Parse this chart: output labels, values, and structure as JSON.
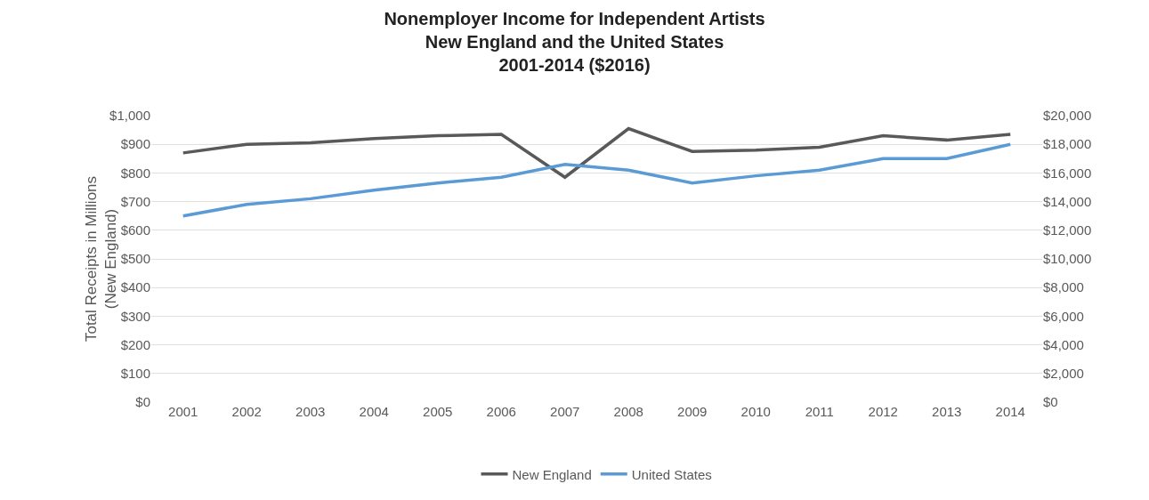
{
  "chart_data": {
    "type": "line",
    "title": "Nonemployer Income for Independent Artists\nNew England and the United States\n2001-2014 ($2016)",
    "ylabel": "Total Receipts in Millions\n(New England)",
    "categories": [
      "2001",
      "2002",
      "2003",
      "2004",
      "2005",
      "2006",
      "2007",
      "2008",
      "2009",
      "2010",
      "2011",
      "2012",
      "2013",
      "2014"
    ],
    "series": [
      {
        "name": "New England",
        "color": "#595959",
        "values": [
          870,
          900,
          905,
          920,
          930,
          935,
          785,
          955,
          875,
          880,
          890,
          930,
          915,
          935
        ]
      },
      {
        "name": "United States",
        "color": "#5b9bd5",
        "axis": "y2",
        "values": [
          13000,
          13800,
          14200,
          14800,
          15300,
          15700,
          16600,
          16200,
          15300,
          15800,
          16200,
          17000,
          17000,
          18000
        ]
      }
    ],
    "ylim": [
      0,
      1000
    ],
    "yticks": [
      {
        "value": 0,
        "label": "$0"
      },
      {
        "value": 100,
        "label": "$100"
      },
      {
        "value": 200,
        "label": "$200"
      },
      {
        "value": 300,
        "label": "$300"
      },
      {
        "value": 400,
        "label": "$400"
      },
      {
        "value": 500,
        "label": "$500"
      },
      {
        "value": 600,
        "label": "$600"
      },
      {
        "value": 700,
        "label": "$700"
      },
      {
        "value": 800,
        "label": "$800"
      },
      {
        "value": 900,
        "label": "$900"
      },
      {
        "value": 1000,
        "label": "$1,000"
      }
    ],
    "y2lim": [
      0,
      20000
    ],
    "y2ticks": [
      {
        "value": 0,
        "label": "$0"
      },
      {
        "value": 2000,
        "label": "$2,000"
      },
      {
        "value": 4000,
        "label": "$4,000"
      },
      {
        "value": 6000,
        "label": "$6,000"
      },
      {
        "value": 8000,
        "label": "$8,000"
      },
      {
        "value": 10000,
        "label": "$10,000"
      },
      {
        "value": 12000,
        "label": "$12,000"
      },
      {
        "value": 14000,
        "label": "$14,000"
      },
      {
        "value": 16000,
        "label": "$16,000"
      },
      {
        "value": 18000,
        "label": "$18,000"
      },
      {
        "value": 20000,
        "label": "$20,000"
      }
    ],
    "grid": "y",
    "legend": "bottom",
    "marker": "none",
    "line_style": "solid"
  }
}
